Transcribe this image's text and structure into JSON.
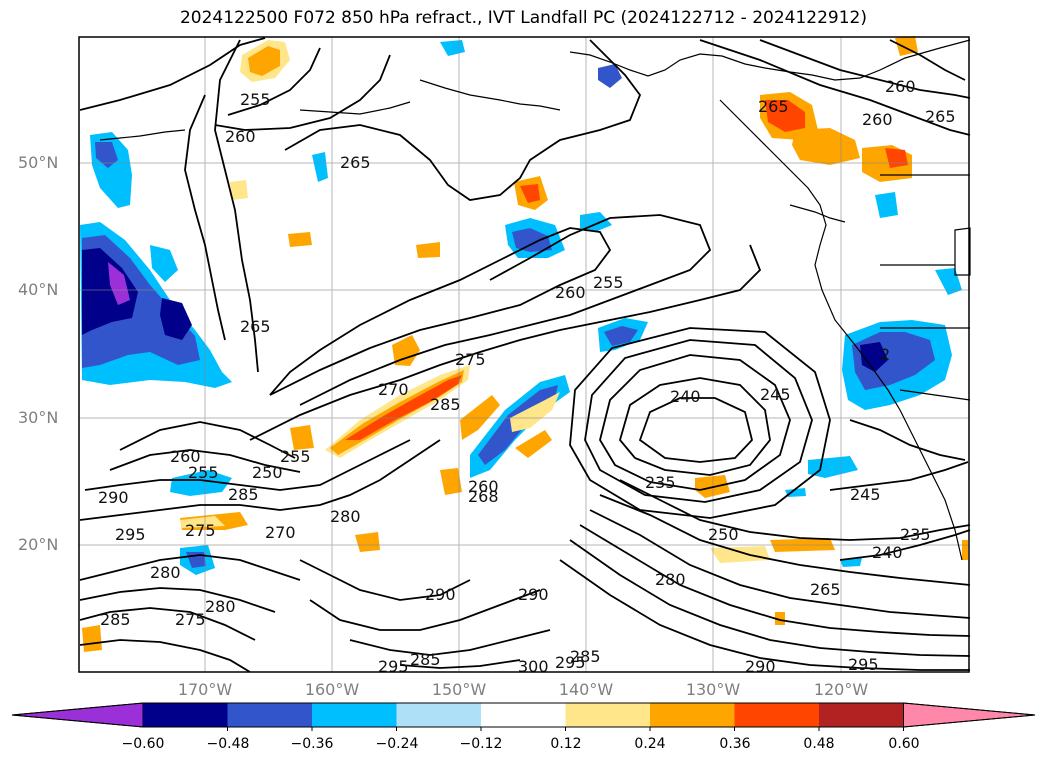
{
  "title": "2024122500 F072 850 hPa refract., IVT Landfall PC (2024122712 - 2024122912)",
  "lat_labels": [
    "50°N",
    "40°N",
    "30°N",
    "20°N"
  ],
  "lon_labels": [
    "170°W",
    "160°W",
    "150°W",
    "140°W",
    "130°W",
    "120°W"
  ],
  "colorbar": {
    "ticks": [
      "−0.60",
      "−0.48",
      "−0.36",
      "−0.24",
      "−0.12",
      "0.12",
      "0.24",
      "0.36",
      "0.48",
      "0.60"
    ],
    "colors": [
      "#9b30d9",
      "#00008b",
      "#3355cc",
      "#00bfff",
      "#aee0f8",
      "#ffffff",
      "#ffe68a",
      "#ffa500",
      "#ff4500",
      "#b22222",
      "#ff88aa"
    ]
  },
  "contour_labels": [
    "255",
    "260",
    "265",
    "260",
    "265",
    "255",
    "260",
    "265",
    "260",
    "255",
    "270",
    "275",
    "285",
    "250",
    "255",
    "260",
    "285",
    "290",
    "295",
    "275",
    "270",
    "280",
    "280",
    "285",
    "275",
    "280",
    "290",
    "290",
    "285",
    "300",
    "295",
    "295",
    "285",
    "240",
    "245",
    "235",
    "250",
    "280",
    "265",
    "290",
    "295",
    "245",
    "235",
    "240",
    "265",
    "268",
    "260",
    "2"
  ],
  "projection": {
    "lon_range": [
      -180,
      -110
    ],
    "lat_range": [
      10,
      60
    ]
  }
}
